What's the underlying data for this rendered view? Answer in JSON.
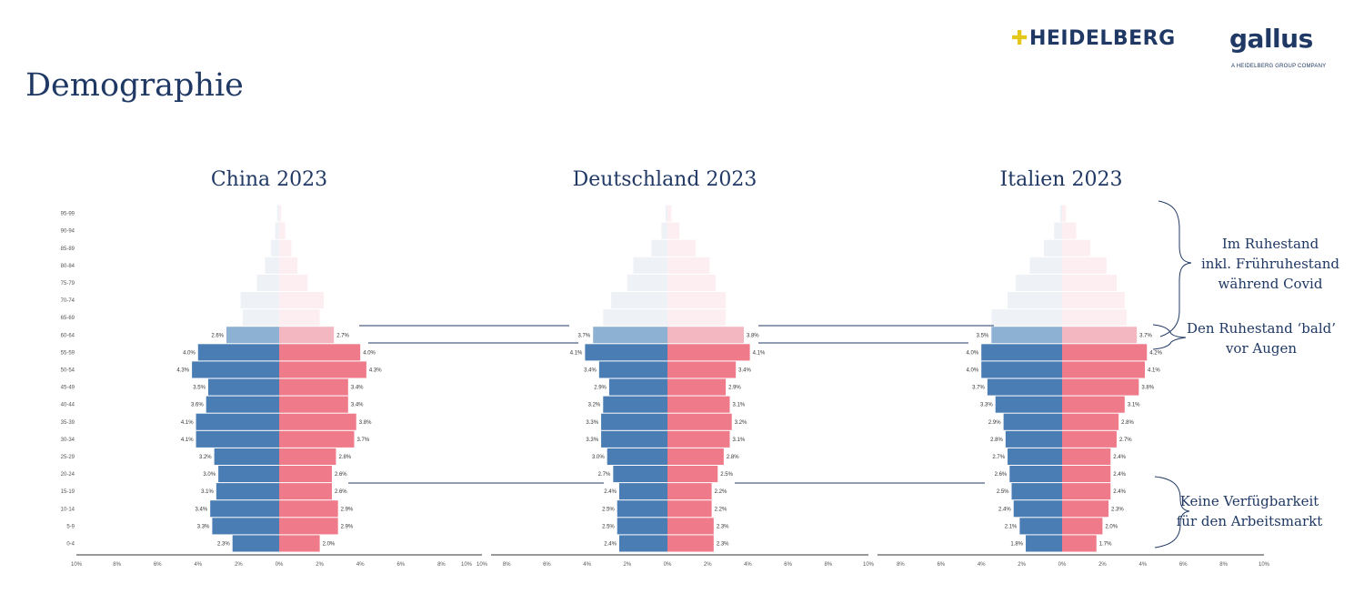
{
  "page": {
    "title": "Demographie",
    "logos": {
      "heidelberg": "HEIDELBERG",
      "gallus": "gallus",
      "gallus_sub": "A HEIDELBERG GROUP COMPANY"
    }
  },
  "colors": {
    "male": "#4a7db4",
    "female": "#ee7a8a",
    "male_faded": "#eef2f7",
    "female_faded": "#fdeef1",
    "male_mid": "#8db1d2",
    "female_mid": "#f2b7c1",
    "text": "#1f3864"
  },
  "annotations": [
    {
      "lines": [
        "Im Ruhestand",
        "inkl. Frühruhestand",
        "während Covid"
      ]
    },
    {
      "lines": [
        "Den Ruhestand ‘bald’",
        "vor Augen"
      ]
    },
    {
      "lines": [
        "Keine Verfügbarkeit",
        "für den Arbeitsmarkt"
      ]
    }
  ],
  "chart_data": [
    {
      "type": "bar",
      "title": "China 2023",
      "categories": [
        "95-99",
        "90-94",
        "85-89",
        "80-84",
        "75-79",
        "70-74",
        "65-69",
        "60-64",
        "55-59",
        "50-54",
        "45-49",
        "40-44",
        "35-39",
        "30-34",
        "25-29",
        "20-24",
        "15-19",
        "10-14",
        "5-9",
        "0-4"
      ],
      "xticks": [
        "10%",
        "8%",
        "6%",
        "4%",
        "2%",
        "0%",
        "2%",
        "4%",
        "6%",
        "8%",
        "10%"
      ],
      "xlim": [
        -10,
        10
      ],
      "series": [
        {
          "side": "left",
          "values": [
            0.1,
            0.2,
            0.4,
            0.7,
            1.1,
            1.9,
            1.8,
            2.6,
            4.0,
            4.3,
            3.5,
            3.6,
            4.1,
            4.1,
            3.2,
            3.0,
            3.1,
            3.4,
            3.3,
            2.3
          ],
          "labels": [
            "",
            "",
            "",
            "",
            "",
            "",
            "",
            "2.6%",
            "4.0%",
            "4.3%",
            "3.5%",
            "3.6%",
            "4.1%",
            "4.1%",
            "3.2%",
            "3.0%",
            "3.1%",
            "3.4%",
            "3.3%",
            "2.3%"
          ]
        },
        {
          "side": "right",
          "values": [
            0.1,
            0.3,
            0.6,
            0.9,
            1.4,
            2.2,
            2.0,
            2.7,
            4.0,
            4.3,
            3.4,
            3.4,
            3.8,
            3.7,
            2.8,
            2.6,
            2.6,
            2.9,
            2.9,
            2.0
          ],
          "labels": [
            "",
            "",
            "",
            "",
            "",
            "",
            "",
            "2.7%",
            "4.0%",
            "4.3%",
            "3.4%",
            "3.4%",
            "3.8%",
            "3.7%",
            "2.8%",
            "2.6%",
            "2.6%",
            "2.9%",
            "2.9%",
            "2.0%"
          ]
        }
      ]
    },
    {
      "type": "bar",
      "title": "Deutschland 2023",
      "categories": [
        "95-99",
        "90-94",
        "85-89",
        "80-84",
        "75-79",
        "70-74",
        "65-69",
        "60-64",
        "55-59",
        "50-54",
        "45-49",
        "40-44",
        "35-39",
        "30-34",
        "25-29",
        "20-24",
        "15-19",
        "10-14",
        "5-9",
        "0-4"
      ],
      "xticks": [
        "10%",
        "8%",
        "6%",
        "4%",
        "2%",
        "0%",
        "2%",
        "4%",
        "6%",
        "8%",
        "10%"
      ],
      "xlim": [
        -10,
        10
      ],
      "series": [
        {
          "side": "left",
          "values": [
            0.1,
            0.3,
            0.8,
            1.7,
            2.0,
            2.8,
            3.2,
            3.7,
            4.1,
            3.4,
            2.9,
            3.2,
            3.3,
            3.3,
            3.0,
            2.7,
            2.4,
            2.5,
            2.5,
            2.4
          ],
          "labels": [
            "",
            "",
            "",
            "",
            "",
            "",
            "",
            "3.7%",
            "4.1%",
            "3.4%",
            "2.9%",
            "3.2%",
            "3.3%",
            "3.3%",
            "3.0%",
            "2.7%",
            "2.4%",
            "2.5%",
            "2.5%",
            "2.4%"
          ]
        },
        {
          "side": "right",
          "values": [
            0.2,
            0.6,
            1.4,
            2.1,
            2.4,
            2.9,
            2.9,
            3.8,
            4.1,
            3.4,
            2.9,
            3.1,
            3.2,
            3.1,
            2.8,
            2.5,
            2.2,
            2.2,
            2.3,
            2.3
          ],
          "labels": [
            "",
            "",
            "",
            "",
            "",
            "",
            "",
            "3.8%",
            "4.1%",
            "3.4%",
            "2.9%",
            "3.1%",
            "3.2%",
            "3.1%",
            "2.8%",
            "2.5%",
            "2.2%",
            "2.2%",
            "2.3%",
            "2.3%"
          ]
        }
      ]
    },
    {
      "type": "bar",
      "title": "Italien 2023",
      "categories": [
        "95-99",
        "90-94",
        "85-89",
        "80-84",
        "75-79",
        "70-74",
        "65-69",
        "60-64",
        "55-59",
        "50-54",
        "45-49",
        "40-44",
        "35-39",
        "30-34",
        "25-29",
        "20-24",
        "15-19",
        "10-14",
        "5-9",
        "0-4"
      ],
      "xticks": [
        "8%",
        "6%",
        "4%",
        "2%",
        "0%",
        "2%",
        "4%",
        "6%",
        "8%",
        "10%"
      ],
      "xlim": [
        -8,
        10
      ],
      "series": [
        {
          "side": "left",
          "values": [
            0.1,
            0.4,
            0.9,
            1.6,
            2.3,
            2.7,
            3.5,
            3.5,
            4.0,
            4.0,
            3.7,
            3.3,
            2.9,
            2.8,
            2.7,
            2.6,
            2.5,
            2.4,
            2.1,
            1.8
          ],
          "labels": [
            "",
            "",
            "",
            "",
            "",
            "",
            "",
            "3.5%",
            "4.0%",
            "4.0%",
            "3.7%",
            "3.3%",
            "2.9%",
            "2.8%",
            "2.7%",
            "2.6%",
            "2.5%",
            "2.4%",
            "2.1%",
            "1.8%"
          ]
        },
        {
          "side": "right",
          "values": [
            0.2,
            0.7,
            1.4,
            2.2,
            2.7,
            3.1,
            3.2,
            3.7,
            4.2,
            4.1,
            3.8,
            3.1,
            2.8,
            2.7,
            2.4,
            2.4,
            2.4,
            2.3,
            2.0,
            1.7
          ],
          "labels": [
            "",
            "",
            "",
            "",
            "",
            "",
            "",
            "3.7%",
            "4.2%",
            "4.1%",
            "3.8%",
            "3.1%",
            "2.8%",
            "2.7%",
            "2.4%",
            "2.4%",
            "2.4%",
            "2.3%",
            "2.0%",
            "1.7%"
          ]
        }
      ]
    }
  ]
}
